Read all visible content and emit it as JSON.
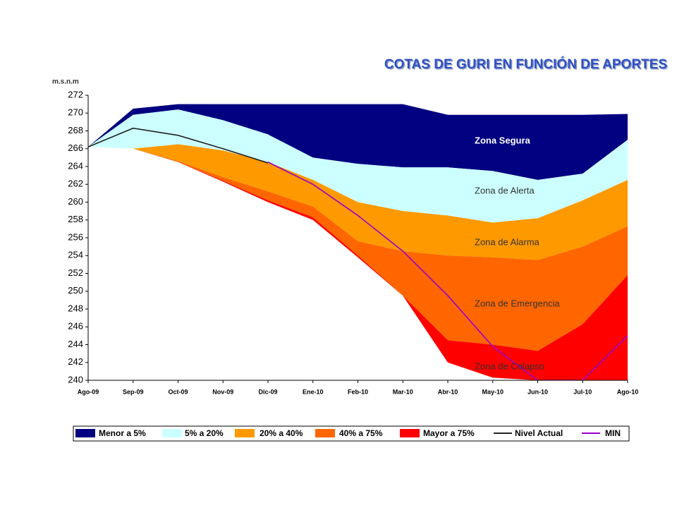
{
  "chart_data": {
    "type": "area",
    "title": "COTAS DE GURI EN FUNCIÓN DE APORTES",
    "y_axis_label": "m.s.n.m",
    "categories": [
      "Ago-09",
      "Sep-09",
      "Oct-09",
      "Nov-09",
      "Dic-09",
      "Ene-10",
      "Feb-10",
      "Mar-10",
      "Abr-10",
      "May-10",
      "Jun-10",
      "Jul-10",
      "Ago-10"
    ],
    "ylim": [
      240,
      272
    ],
    "yticks": [
      240,
      242,
      244,
      246,
      248,
      250,
      252,
      254,
      256,
      258,
      260,
      262,
      264,
      266,
      268,
      270,
      272
    ],
    "legend": "bottom",
    "series": [
      {
        "name": "Menor a 5%",
        "kind": "area",
        "color": "#000080",
        "values": [
          266.2,
          270.5,
          271,
          271,
          271,
          271,
          271,
          271,
          269.8,
          269.8,
          269.8,
          269.8,
          269.9
        ]
      },
      {
        "name": "5% a 20%",
        "kind": "area",
        "color": "#ccffff",
        "values": [
          266.2,
          269.8,
          270.4,
          269.2,
          267.6,
          265.0,
          264.3,
          263.9,
          263.9,
          263.5,
          262.5,
          263.2,
          267.0
        ]
      },
      {
        "name": "20% a 40%",
        "kind": "area",
        "color": "#ff9900",
        "values": [
          null,
          266,
          266.5,
          265.8,
          264.5,
          262.5,
          260,
          259,
          258.5,
          257.7,
          258.2,
          260.2,
          262.5
        ]
      },
      {
        "name": "40% a 75%",
        "kind": "area",
        "color": "#ff6600",
        "values": [
          null,
          266,
          264.6,
          262.8,
          261.2,
          259.5,
          255.6,
          254.5,
          254.0,
          253.8,
          253.5,
          255,
          257.3
        ]
      },
      {
        "name": "Mayor a 75%",
        "kind": "area",
        "color": "#ff0000",
        "values": [
          null,
          266,
          264.5,
          262.4,
          260.2,
          258.3,
          254,
          249.5,
          244.5,
          244.0,
          243.3,
          246.3,
          251.8
        ],
        "base": [
          null,
          266,
          264.5,
          262.3,
          260,
          258,
          253.8,
          249.5,
          242,
          240.3,
          240,
          240,
          240
        ]
      },
      {
        "name": "Nivel Actual",
        "kind": "line",
        "color": "#222222",
        "values": [
          266.2,
          268.3,
          267.5,
          266.0,
          264.4,
          null,
          null,
          null,
          null,
          null,
          null,
          null,
          null
        ]
      },
      {
        "name": "MIN",
        "kind": "line",
        "color": "#9900cc",
        "values": [
          null,
          null,
          null,
          null,
          264.5,
          262,
          258.5,
          254.5,
          249.5,
          243.8,
          240,
          240,
          245
        ]
      }
    ],
    "annotations": [
      "Zona Segura",
      "Zona de Alerta",
      "Zona de Alarma",
      "Zona de Emergencia",
      "Zona de Colapso"
    ]
  }
}
